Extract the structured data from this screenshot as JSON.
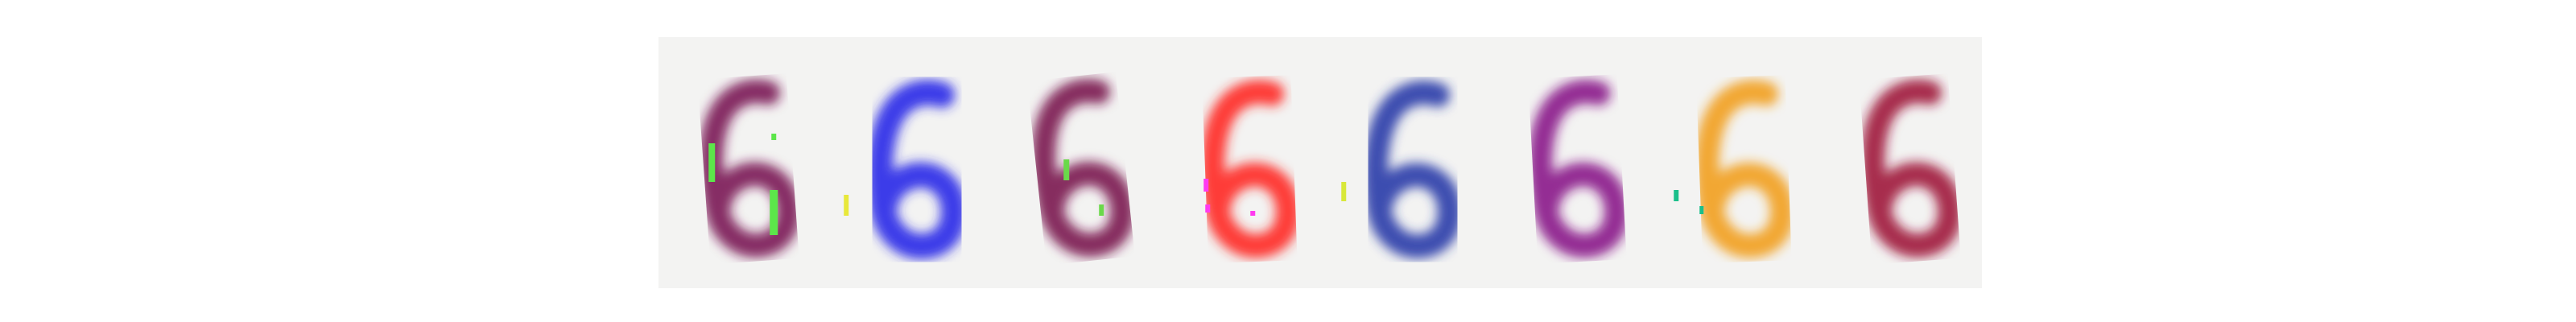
{
  "strip": {
    "digits": [
      {
        "label": "6",
        "color": "#7a1a55",
        "artifact_color": "#5ce64a"
      },
      {
        "label": "6",
        "color": "#2a2ae8",
        "artifact_color": "#e8e83a"
      },
      {
        "label": "6",
        "color": "#7a1a4f",
        "artifact_color": "#6ad94a"
      },
      {
        "label": "6",
        "color": "#ff2a24",
        "artifact_color": "#ff3af0"
      },
      {
        "label": "6",
        "color": "#2a3aa8",
        "artifact_color": "#d8e83a"
      },
      {
        "label": "6",
        "color": "#8a1a8a",
        "artifact_color": ""
      },
      {
        "label": "6",
        "color": "#f2a020",
        "artifact_color": "#1abf8a"
      },
      {
        "label": "6",
        "color": "#a0143c",
        "artifact_color": ""
      }
    ]
  }
}
